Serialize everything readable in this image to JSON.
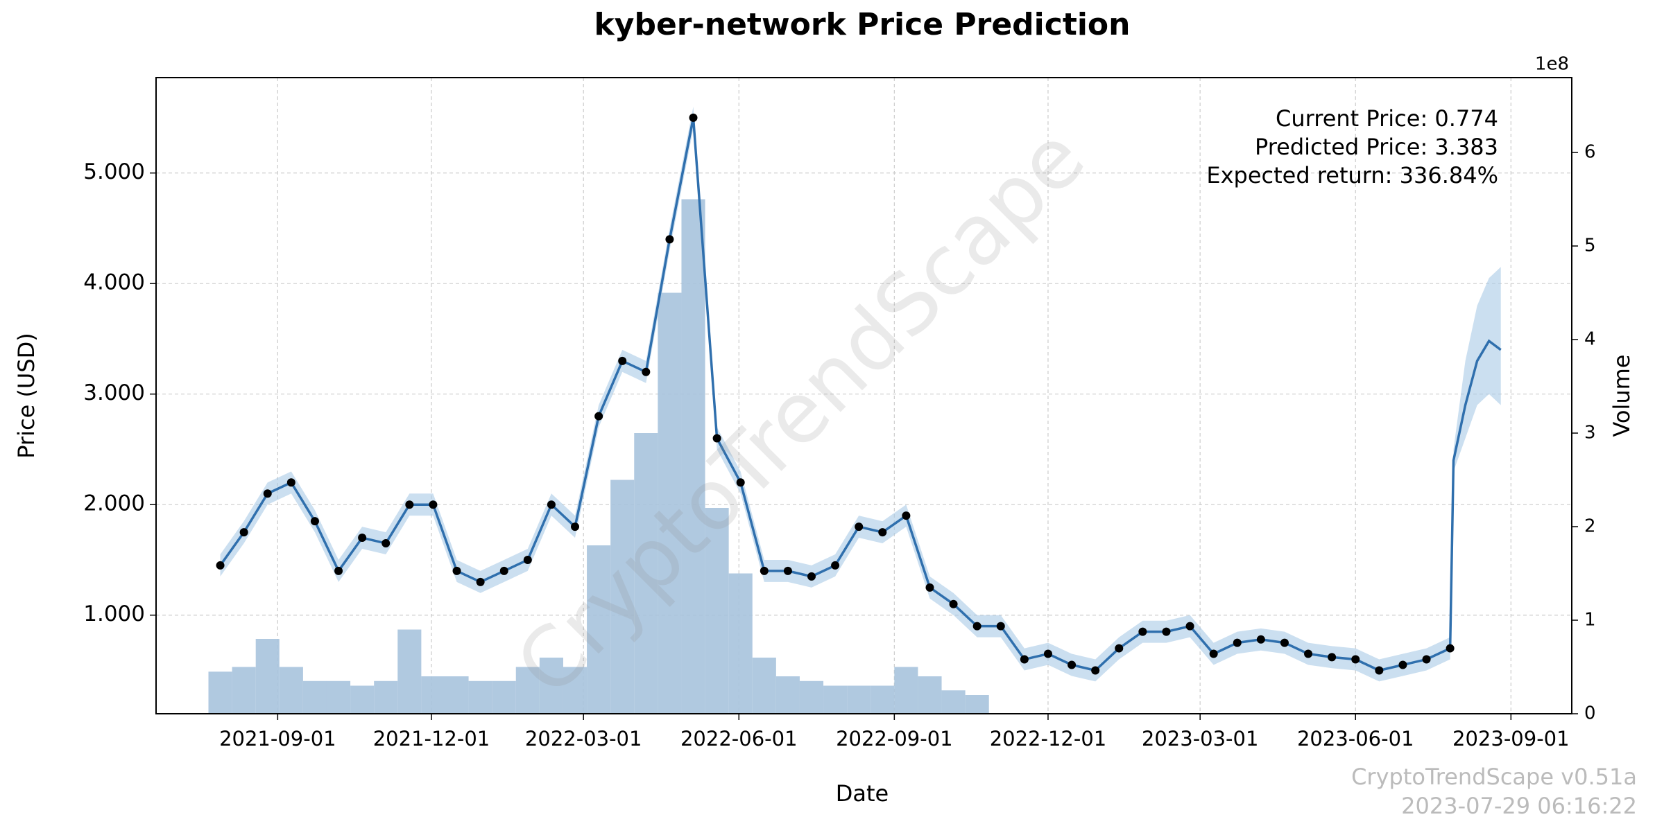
{
  "chart_data": {
    "type": "forecast",
    "title": "kyber-network Price Prediction",
    "xlabel": "Date",
    "ylabel": "Price (USD)",
    "y2label": "Volume",
    "y2_offset_label": "1e8",
    "annotations": [
      "Current Price: 0.774",
      "Predicted Price: 3.383",
      "Expected return: 336.84%"
    ],
    "watermark": "CryptoTrendScape",
    "footer": [
      "CryptoTrendScape v0.51a",
      "2023-07-29 06:16:22"
    ],
    "grid": true,
    "x": [
      "2021-07-29",
      "2021-08-12",
      "2021-08-26",
      "2021-09-09",
      "2021-09-23",
      "2021-10-07",
      "2021-10-21",
      "2021-11-04",
      "2021-11-18",
      "2021-12-02",
      "2021-12-16",
      "2021-12-30",
      "2022-01-13",
      "2022-01-27",
      "2022-02-10",
      "2022-02-24",
      "2022-03-10",
      "2022-03-24",
      "2022-04-07",
      "2022-04-21",
      "2022-05-05",
      "2022-05-19",
      "2022-06-02",
      "2022-06-16",
      "2022-06-30",
      "2022-07-14",
      "2022-07-28",
      "2022-08-11",
      "2022-08-25",
      "2022-09-08",
      "2022-09-22",
      "2022-10-06",
      "2022-10-20",
      "2022-11-03",
      "2022-11-17",
      "2022-12-01",
      "2022-12-15",
      "2022-12-29",
      "2023-01-12",
      "2023-01-26",
      "2023-02-09",
      "2023-02-23",
      "2023-03-09",
      "2023-03-23",
      "2023-04-06",
      "2023-04-20",
      "2023-05-04",
      "2023-05-18",
      "2023-06-01",
      "2023-06-15",
      "2023-06-29",
      "2023-07-13",
      "2023-07-27",
      "2023-07-29",
      "2023-08-05",
      "2023-08-12",
      "2023-08-19",
      "2023-08-26"
    ],
    "series": [
      {
        "color": "#000000",
        "values": [
          1.45,
          1.75,
          2.1,
          2.2,
          1.85,
          1.4,
          1.7,
          1.65,
          2.0,
          2.0,
          1.4,
          1.3,
          1.4,
          1.5,
          2.0,
          1.8,
          2.8,
          3.3,
          3.2,
          4.4,
          5.5,
          2.6,
          2.2,
          1.4,
          1.4,
          1.35,
          1.45,
          1.8,
          1.75,
          1.9,
          1.25,
          1.1,
          0.9,
          0.9,
          0.6,
          0.65,
          0.55,
          0.5,
          0.7,
          0.85,
          0.85,
          0.9,
          0.65,
          0.75,
          0.78,
          0.75,
          0.65,
          0.62,
          0.6,
          0.5,
          0.55,
          0.6,
          0.7,
          null,
          null,
          null,
          null,
          null
        ]
      },
      {
        "color": "#2f6fad",
        "band_color": "#a9c9e6",
        "values": [
          1.45,
          1.75,
          2.1,
          2.2,
          1.85,
          1.4,
          1.7,
          1.65,
          2.0,
          2.0,
          1.4,
          1.3,
          1.4,
          1.5,
          2.0,
          1.8,
          2.8,
          3.3,
          3.2,
          4.4,
          5.5,
          2.6,
          2.2,
          1.4,
          1.4,
          1.35,
          1.45,
          1.8,
          1.75,
          1.9,
          1.25,
          1.1,
          0.9,
          0.9,
          0.6,
          0.65,
          0.55,
          0.5,
          0.7,
          0.85,
          0.85,
          0.9,
          0.65,
          0.75,
          0.78,
          0.75,
          0.65,
          0.62,
          0.6,
          0.5,
          0.55,
          0.6,
          0.7,
          2.4,
          2.9,
          3.3,
          3.48,
          3.4
        ],
        "lower": [
          1.35,
          1.65,
          2.0,
          2.1,
          1.75,
          1.3,
          1.6,
          1.55,
          1.9,
          1.9,
          1.3,
          1.2,
          1.3,
          1.4,
          1.9,
          1.7,
          2.7,
          3.2,
          3.1,
          4.3,
          5.4,
          2.5,
          2.1,
          1.3,
          1.3,
          1.25,
          1.35,
          1.7,
          1.65,
          1.8,
          1.15,
          1.0,
          0.8,
          0.8,
          0.5,
          0.55,
          0.45,
          0.4,
          0.6,
          0.75,
          0.75,
          0.8,
          0.55,
          0.65,
          0.68,
          0.65,
          0.55,
          0.52,
          0.5,
          0.4,
          0.45,
          0.5,
          0.6,
          2.3,
          2.6,
          2.9,
          3.0,
          2.9
        ],
        "upper": [
          1.55,
          1.85,
          2.2,
          2.3,
          1.95,
          1.5,
          1.8,
          1.75,
          2.1,
          2.1,
          1.5,
          1.4,
          1.5,
          1.6,
          2.1,
          1.9,
          2.9,
          3.4,
          3.3,
          4.5,
          5.6,
          2.7,
          2.3,
          1.5,
          1.5,
          1.45,
          1.55,
          1.9,
          1.85,
          2.0,
          1.35,
          1.2,
          1.0,
          1.0,
          0.7,
          0.75,
          0.65,
          0.6,
          0.8,
          0.95,
          0.95,
          1.0,
          0.75,
          0.85,
          0.88,
          0.85,
          0.75,
          0.72,
          0.7,
          0.6,
          0.65,
          0.7,
          0.8,
          2.5,
          3.3,
          3.8,
          4.05,
          4.15
        ]
      },
      {
        "color": "#a7c3dd",
        "axis": "y2",
        "values": [
          0.45,
          0.5,
          0.8,
          0.5,
          0.35,
          0.35,
          0.3,
          0.35,
          0.9,
          0.4,
          0.4,
          0.35,
          0.35,
          0.5,
          0.6,
          0.5,
          1.8,
          2.5,
          3.0,
          4.5,
          5.5,
          2.2,
          1.5,
          0.6,
          0.4,
          0.35,
          0.3,
          0.3,
          0.3,
          0.5,
          0.4,
          0.25,
          0.2,
          null,
          null,
          null,
          null,
          null,
          null,
          null,
          null,
          null,
          null,
          null,
          null,
          null,
          null,
          null,
          null,
          null,
          null,
          null,
          null,
          null,
          null,
          null,
          null,
          null
        ]
      }
    ],
    "xlim": [
      "2021-06-21",
      "2023-10-07"
    ],
    "xticks": [
      "2021-09-01",
      "2021-12-01",
      "2022-03-01",
      "2022-06-01",
      "2022-09-01",
      "2022-12-01",
      "2023-03-01",
      "2023-06-01",
      "2023-09-01"
    ],
    "ylim": [
      0.108,
      5.863
    ],
    "yticks": [
      {
        "value": 1,
        "label": "1.000"
      },
      {
        "value": 2,
        "label": "2.000"
      },
      {
        "value": 3,
        "label": "3.000"
      },
      {
        "value": 4,
        "label": "4.000"
      },
      {
        "value": 5,
        "label": "5.000"
      }
    ],
    "y2lim": [
      0,
      6.8
    ],
    "y2ticks": [
      0,
      1,
      2,
      3,
      4,
      5,
      6
    ]
  }
}
